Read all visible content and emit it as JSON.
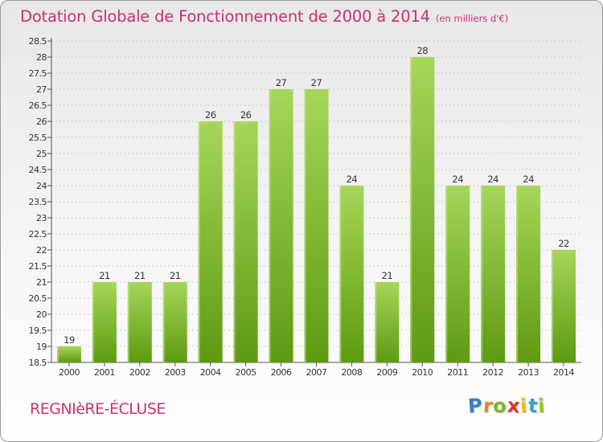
{
  "header": {
    "title": "Dotation Globale de Fonctionnement de 2000 à 2014",
    "subtitle": "(en milliers d'€)"
  },
  "footer": {
    "commune": "REGNIèRE-ÉCLUSE",
    "logo_letters": [
      "P",
      "r",
      "o",
      "x",
      "i",
      "t",
      "i"
    ],
    "logo_colors": [
      "#3a7fc4",
      "#e8862a",
      "#7bb82a",
      "#d63a2a",
      "#e8c020",
      "#3aa0d6",
      "#9bc52a"
    ]
  },
  "colors": {
    "bar_top": "#a6d65a",
    "bar_bottom": "#5e9a12",
    "text": "#333333",
    "grid": "#c8c8c8"
  },
  "chart_data": {
    "type": "bar",
    "title": "Dotation Globale de Fonctionnement de 2000 à 2014",
    "subtitle": "(en milliers d'€)",
    "categories": [
      "2000",
      "2001",
      "2002",
      "2003",
      "2004",
      "2005",
      "2006",
      "2007",
      "2008",
      "2009",
      "2010",
      "2011",
      "2012",
      "2013",
      "2014"
    ],
    "values": [
      19,
      21,
      21,
      21,
      26,
      26,
      27,
      27,
      24,
      21,
      28,
      24,
      24,
      24,
      22
    ],
    "xlabel": "",
    "ylabel": "",
    "ylim": [
      18.5,
      28.5
    ],
    "yticks": [
      "18.5",
      "19",
      "19.5",
      "20",
      "20.5",
      "21",
      "21.5",
      "22",
      "22.5",
      "23",
      "23.5",
      "24",
      "24.5",
      "25",
      "25.5",
      "26",
      "26.5",
      "27",
      "27.5",
      "28",
      "28.5"
    ],
    "grid": true
  }
}
